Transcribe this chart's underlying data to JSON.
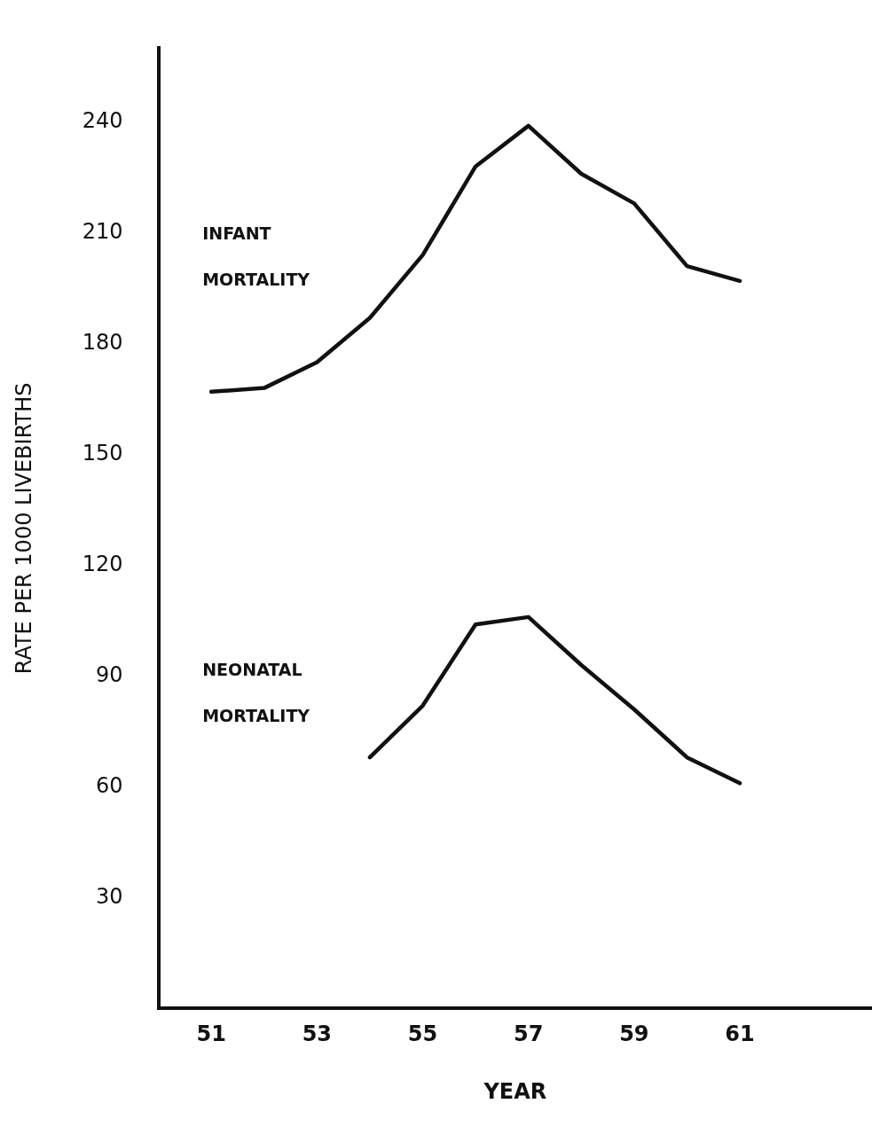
{
  "chart_data": {
    "type": "line",
    "xlabel": "YEAR",
    "ylabel": "RATE PER 1000 LIVEBIRTHS",
    "series": [
      {
        "name": "INFANT MORTALITY",
        "color": "#111111",
        "x": [
          51,
          52,
          53,
          54,
          55,
          56,
          57,
          58,
          59,
          60,
          61
        ],
        "values": [
          167,
          168,
          175,
          187,
          204,
          228,
          239,
          226,
          218,
          201,
          197
        ]
      },
      {
        "name": "NEONATAL MORTALITY",
        "color": "#111111",
        "x": [
          54,
          55,
          56,
          57,
          58,
          59,
          60,
          61
        ],
        "values": [
          68,
          82,
          104,
          106,
          93,
          81,
          68,
          61
        ]
      }
    ],
    "xlim": [
      50,
      63.5
    ],
    "xticks": [
      51,
      53,
      55,
      57,
      59,
      61
    ],
    "ylim": [
      0,
      260
    ],
    "yticks": [
      30,
      60,
      90,
      120,
      150,
      180,
      210,
      240
    ],
    "grid": false,
    "legend": false,
    "marker": "none",
    "line_style": "solid"
  }
}
